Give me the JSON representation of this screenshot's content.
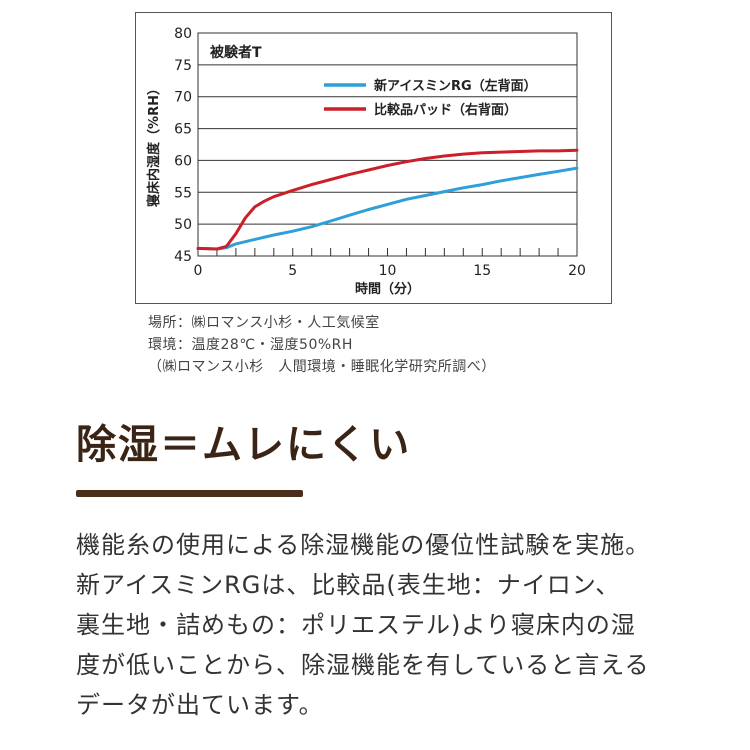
{
  "chart_data": {
    "type": "line",
    "subject": "被験者T",
    "xlabel": "時間（分）",
    "ylabel": "寝床内湿度（%RH）",
    "xlim": [
      0,
      20
    ],
    "ylim": [
      45,
      80
    ],
    "x_ticks": [
      0,
      5,
      10,
      15,
      20
    ],
    "y_ticks": [
      45,
      50,
      55,
      60,
      65,
      70,
      75,
      80
    ],
    "grid": true,
    "legend_position": "top-right",
    "series": [
      {
        "name": "新アイスミンRG（左背面）",
        "color": "#2e9fd8",
        "x": [
          0,
          1,
          1.5,
          2,
          3,
          4,
          5,
          6,
          7,
          8,
          9,
          10,
          11,
          12,
          13,
          14,
          15,
          16,
          17,
          18,
          19,
          20
        ],
        "y": [
          46.2,
          46.1,
          46.3,
          46.9,
          47.6,
          48.3,
          48.9,
          49.6,
          50.5,
          51.4,
          52.3,
          53.1,
          53.9,
          54.5,
          55.1,
          55.7,
          56.2,
          56.8,
          57.3,
          57.8,
          58.3,
          58.8
        ]
      },
      {
        "name": "比較品パッド（右背面）",
        "color": "#cc1f2a",
        "x": [
          0,
          1,
          1.5,
          2,
          2.5,
          3,
          3.5,
          4,
          5,
          6,
          7,
          8,
          9,
          10,
          11,
          12,
          13,
          14,
          15,
          16,
          17,
          18,
          19,
          20
        ],
        "y": [
          46.2,
          46.1,
          46.5,
          48.5,
          51.0,
          52.7,
          53.6,
          54.3,
          55.3,
          56.2,
          57.0,
          57.8,
          58.5,
          59.2,
          59.8,
          60.3,
          60.7,
          61.0,
          61.2,
          61.3,
          61.4,
          61.5,
          61.5,
          61.6
        ]
      }
    ]
  },
  "notes": [
    "場所：㈱ロマンス小杉・人工気候室",
    "環境：温度28℃・湿度50%RH",
    "（㈱ロマンス小杉　人間環境・睡眠化学研究所調べ）"
  ],
  "heading": "除湿＝ムレにくい",
  "body_lines": [
    "機能糸の使用による除湿機能の優位性試験を実施。",
    "新アイスミンRGは、比較品(表生地：ナイロン、",
    "裏生地・詰めもの：ポリエステル)より寝床内の湿",
    "度が低いことから、除湿機能を有していると言える",
    "データが出ています。"
  ]
}
